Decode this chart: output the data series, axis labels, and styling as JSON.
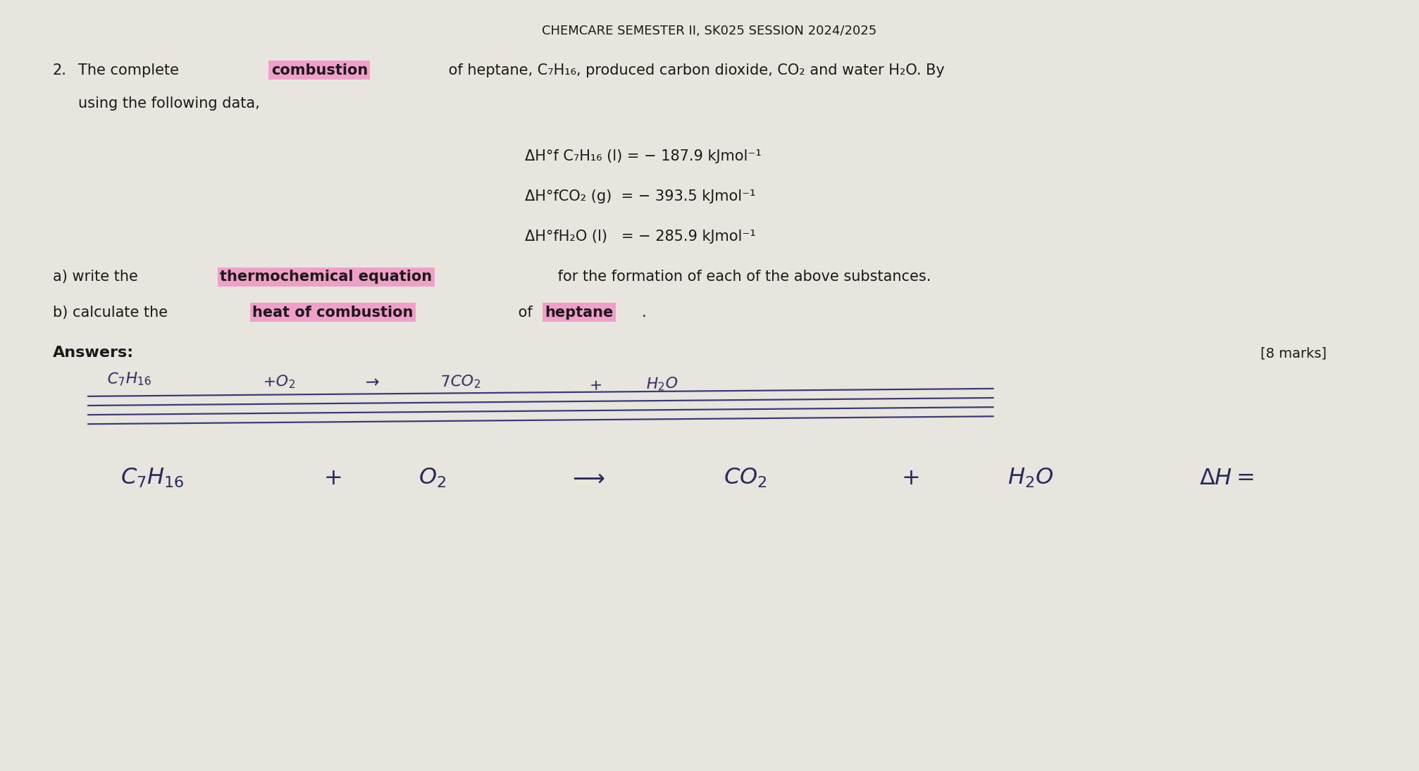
{
  "bg_color": "#e8e5df",
  "header": "CHEMCARE SEMESTER II, SK025 SESSION 2024/2025",
  "highlight_color": "#f0a0c8",
  "data_line1_a": "ΔH°f C₇H₁₆ (l) = − 187.9 kJmol⁻¹",
  "data_line2_a": "ΔH°fCO₂ (g)  = − 393.5 kJmol⁻¹",
  "data_line3_a": "ΔH°fH₂O (l)   = − 285.9 kJmol⁻¹",
  "answers_label": "Answers:",
  "marks": "[8 marks]",
  "text_color": "#1a1a1a",
  "handwritten_color": "#2a2a5a"
}
